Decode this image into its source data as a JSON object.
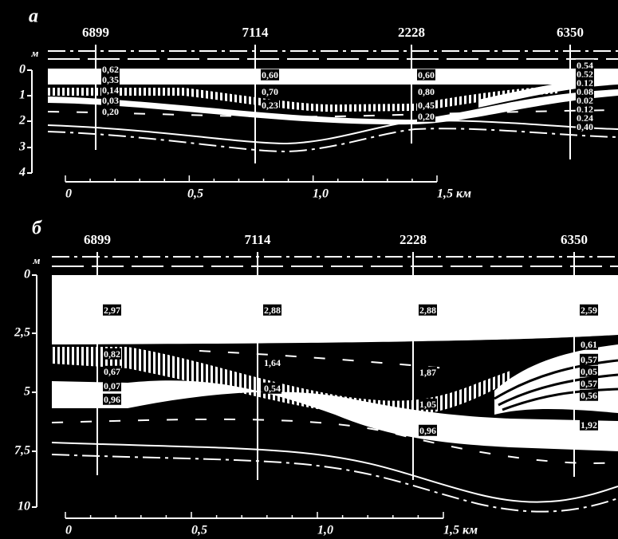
{
  "panels": [
    {
      "label": "а",
      "unit": "м",
      "depth_ticks": [
        "0",
        "1",
        "2",
        "3",
        "4"
      ],
      "wells": [
        {
          "name": "6899",
          "values": [
            "0,62",
            "0,35",
            "0,14",
            "0,03",
            "0,20"
          ]
        },
        {
          "name": "7114",
          "values": [
            "0,60",
            "0,70",
            "0,23"
          ]
        },
        {
          "name": "2228",
          "values": [
            "0,60",
            "0,80",
            "0,45",
            "0,20"
          ]
        },
        {
          "name": "6350",
          "values": [
            "0,54",
            "0,52",
            "0,12",
            "0,08",
            "0,02",
            "0,12",
            "0,24",
            "0,40"
          ]
        }
      ],
      "scale_ticks": [
        "0",
        "0,5",
        "1,0",
        "1,5 км"
      ]
    },
    {
      "label": "б",
      "unit": "м",
      "depth_ticks": [
        "0",
        "2,5",
        "5",
        "7,5",
        "10"
      ],
      "wells": [
        {
          "name": "6899",
          "values": [
            "2,97",
            "0,82",
            "0,67",
            "0,07",
            "0,96"
          ]
        },
        {
          "name": "7114",
          "values": [
            "2,88",
            "1,64",
            "0,54"
          ]
        },
        {
          "name": "2228",
          "values": [
            "2,88",
            "1,87",
            "1,05",
            "0,96"
          ]
        },
        {
          "name": "6350",
          "values": [
            "2,59",
            "0,61",
            "0,57",
            "0,05",
            "0,57",
            "0,56",
            "1,92"
          ]
        }
      ],
      "scale_ticks": [
        "0",
        "0,5",
        "1,0",
        "1,5 км"
      ]
    }
  ]
}
